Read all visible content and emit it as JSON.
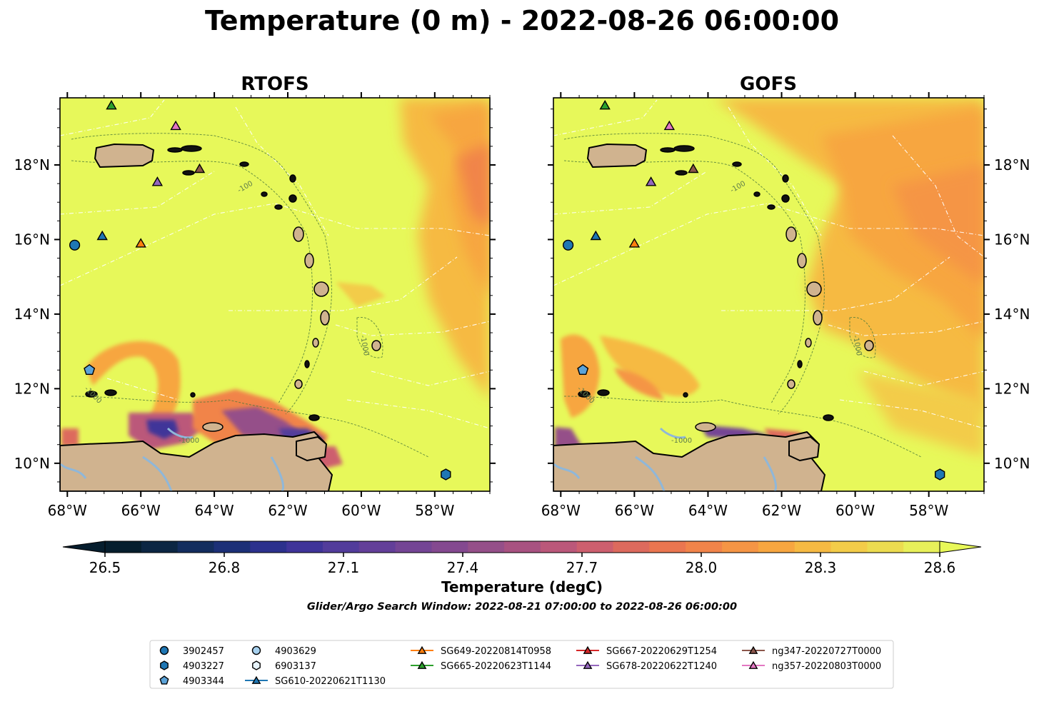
{
  "figure": {
    "title": "Temperature (0 m) - 2022-08-26 06:00:00",
    "panels": [
      {
        "id": "rtofs",
        "title": "RTOFS"
      },
      {
        "id": "gofs",
        "title": "GOFS"
      }
    ],
    "lon_ticks": [
      "68°W",
      "66°W",
      "64°W",
      "62°W",
      "60°W",
      "58°W"
    ],
    "lat_ticks": [
      "18°N",
      "16°N",
      "14°N",
      "12°N",
      "10°N"
    ],
    "colorbar": {
      "label": "Temperature (degC)",
      "tick_labels": [
        "26.5",
        "26.8",
        "27.1",
        "27.4",
        "27.7",
        "28.0",
        "28.3",
        "28.6"
      ],
      "min": 26.4,
      "max": 28.7,
      "colors": [
        "#051d2d",
        "#0c2643",
        "#132d5e",
        "#1c3077",
        "#2c318d",
        "#3f3499",
        "#523c9b",
        "#633f99",
        "#744595",
        "#844990",
        "#954f89",
        "#a85281",
        "#bb587a",
        "#cd5f6e",
        "#dd6a5d",
        "#ea7650",
        "#f1844a",
        "#f59545",
        "#f7a640",
        "#f6ba43",
        "#f3cc49",
        "#ecdc50",
        "#e8f05a"
      ],
      "under_color": "#051d2d",
      "over_color": "#e8f858"
    },
    "search_window": "Glider/Argo Search Window: 2022-08-21 07:00:00 to 2022-08-26 06:00:00",
    "bathymetry_labels": [
      "-100",
      "-1000"
    ],
    "colors": {
      "land": "#d0b38f",
      "ocean_base": "#e7f85a",
      "warm": "#f7a640",
      "hot": "#f1844a",
      "river": "#8fb7d9",
      "eez": "#ffffff"
    }
  },
  "chart_data": {
    "type": "map",
    "extent_lon": [
      -68.2,
      -56.5
    ],
    "extent_lat": [
      9.25,
      19.8
    ],
    "variable": "Temperature (0 m)",
    "units": "degC",
    "markers": [
      {
        "name": "3902457",
        "kind": "argo",
        "shape": "circle",
        "color": "#1f77b4",
        "lon": -67.8,
        "lat": 15.85
      },
      {
        "name": "4903227",
        "kind": "argo",
        "shape": "hexagon",
        "color": "#1f77b4",
        "lon": -57.7,
        "lat": 9.7
      },
      {
        "name": "4903344",
        "kind": "argo",
        "shape": "pentagon",
        "color": "#5ba3d8",
        "lon": -67.4,
        "lat": 12.5
      },
      {
        "name": "4903629",
        "kind": "argo",
        "shape": "circle",
        "color": "#a6d0ee",
        "lon": null,
        "lat": null
      },
      {
        "name": "6903137",
        "kind": "argo",
        "shape": "hexagon",
        "color": "#e8f4fc",
        "lon": null,
        "lat": null
      },
      {
        "name": "SG610-20220621T1130",
        "kind": "glider",
        "shape": "triangle",
        "color": "#1f77b4",
        "lon": -67.05,
        "lat": 16.1
      },
      {
        "name": "SG649-20220814T0958",
        "kind": "glider",
        "shape": "triangle",
        "color": "#ff7f0e",
        "lon": -66.0,
        "lat": 15.9
      },
      {
        "name": "SG665-20220623T1144",
        "kind": "glider",
        "shape": "triangle",
        "color": "#2ca02c",
        "lon": -66.8,
        "lat": 19.6
      },
      {
        "name": "SG667-20220629T1254",
        "kind": "glider",
        "shape": "triangle",
        "color": "#d62728",
        "lon": null,
        "lat": null
      },
      {
        "name": "SG678-20220622T1240",
        "kind": "glider",
        "shape": "triangle",
        "color": "#9467bd",
        "lon": -65.55,
        "lat": 17.55
      },
      {
        "name": "ng347-20220727T0000",
        "kind": "glider",
        "shape": "triangle",
        "color": "#8c564b",
        "lon": -64.4,
        "lat": 17.9
      },
      {
        "name": "ng357-20220803T0000",
        "kind": "glider",
        "shape": "triangle",
        "color": "#e377c2",
        "lon": -65.05,
        "lat": 19.05
      }
    ]
  }
}
